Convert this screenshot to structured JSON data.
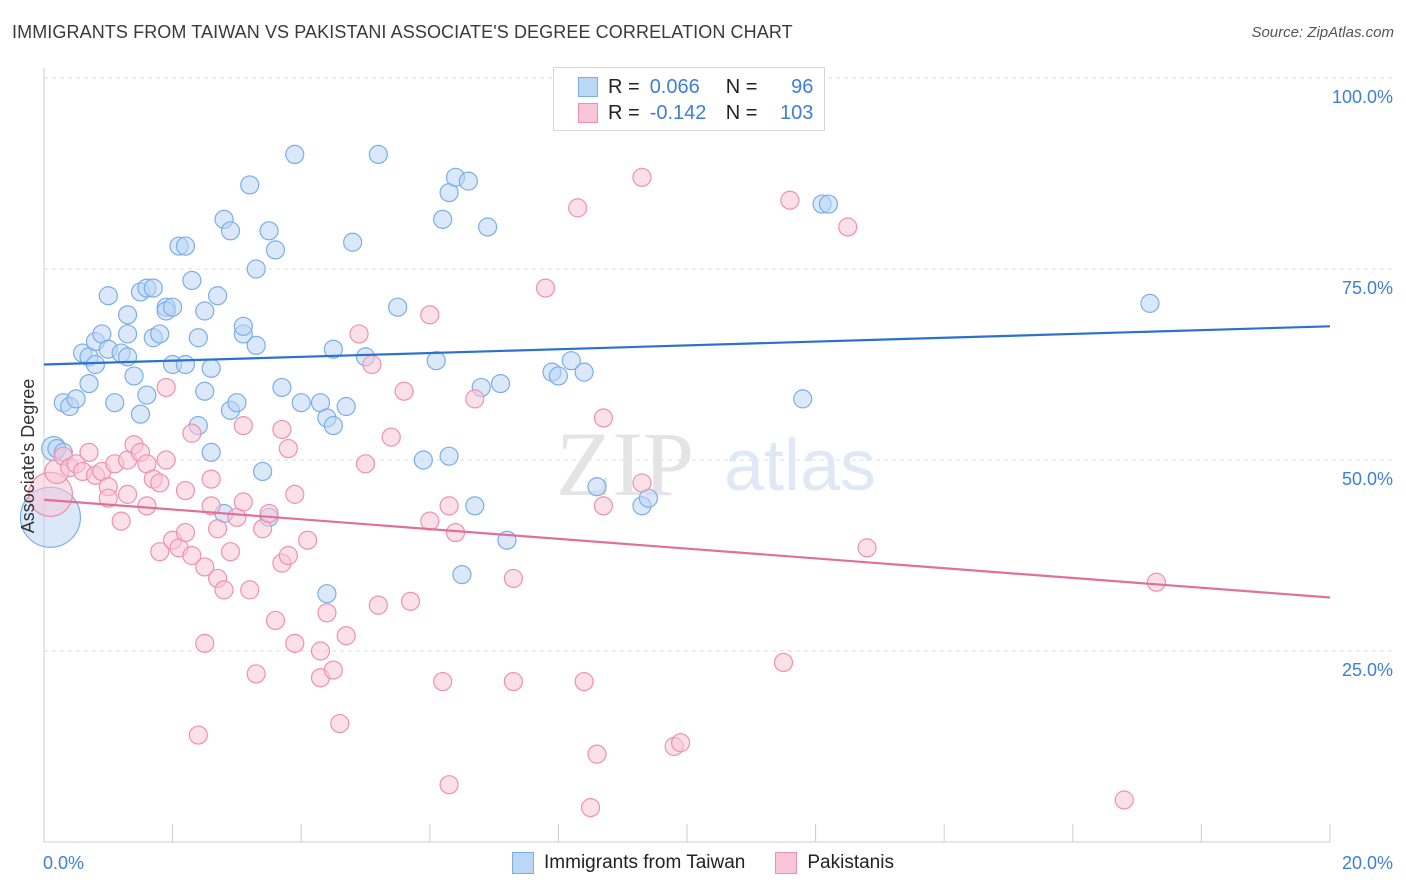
{
  "header": {
    "title": "IMMIGRANTS FROM TAIWAN VS PAKISTANI ASSOCIATE'S DEGREE CORRELATION CHART",
    "source": "Source: ZipAtlas.com"
  },
  "stats": {
    "r_label": "R =",
    "n_label": "N =",
    "taiwan": {
      "r": "0.066",
      "n": "96"
    },
    "pakistani": {
      "r": "-0.142",
      "n": "103"
    }
  },
  "watermark": {
    "zip": "ZIP",
    "atlas": "atlas"
  },
  "colors": {
    "taiwan": "#7aaee8",
    "taiwan_fill": "#bcd6f5",
    "taiwan_line": "#2a72cc",
    "pakistani": "#f090b0",
    "pakistani_fill": "#f8c6d6",
    "pakistani_line": "#e0709a",
    "tick_label": "#3d7fd6",
    "grid": "#dddddd"
  },
  "chart_data": {
    "type": "scatter",
    "xlabel": "",
    "ylabel": "Associate's Degree",
    "xlim": [
      0,
      20
    ],
    "ylim": [
      0,
      100
    ],
    "x_tick_labels": [
      "0.0%",
      "20.0%"
    ],
    "y_ticks": [
      25,
      50,
      75,
      100
    ],
    "y_tick_labels": [
      "25.0%",
      "50.0%",
      "75.0%",
      "100.0%"
    ],
    "grid": true,
    "legend": [
      {
        "name": "Immigrants from Taiwan"
      },
      {
        "name": "Pakistanis"
      }
    ],
    "series": [
      {
        "name": "Immigrants from Taiwan",
        "trend": [
          [
            0,
            62.5
          ],
          [
            20,
            67.5
          ]
        ],
        "points": [
          [
            0.1,
            42.5,
            30
          ],
          [
            0.15,
            51.5,
            12
          ],
          [
            0.2,
            51.5,
            9
          ],
          [
            0.3,
            51,
            9
          ],
          [
            0.3,
            57.5,
            9
          ],
          [
            0.4,
            57,
            9
          ],
          [
            0.5,
            58,
            9
          ],
          [
            0.6,
            64,
            9
          ],
          [
            0.7,
            63.5,
            9
          ],
          [
            0.7,
            60,
            9
          ],
          [
            0.8,
            62.5,
            9
          ],
          [
            0.8,
            65.5,
            9
          ],
          [
            0.9,
            66.5,
            9
          ],
          [
            1.0,
            64.5,
            9
          ],
          [
            1.0,
            71.5,
            9
          ],
          [
            1.1,
            57.5,
            9
          ],
          [
            1.2,
            64,
            9
          ],
          [
            1.3,
            66.5,
            9
          ],
          [
            1.3,
            63.5,
            9
          ],
          [
            1.3,
            69,
            9
          ],
          [
            1.4,
            61,
            9
          ],
          [
            1.5,
            56,
            9
          ],
          [
            1.5,
            72,
            9
          ],
          [
            1.6,
            58.5,
            9
          ],
          [
            1.6,
            72.5,
            9
          ],
          [
            1.7,
            72.5,
            9
          ],
          [
            1.7,
            66,
            9
          ],
          [
            1.8,
            66.5,
            9
          ],
          [
            1.9,
            70,
            9
          ],
          [
            1.9,
            69.5,
            9
          ],
          [
            2.0,
            62.5,
            9
          ],
          [
            2.0,
            70,
            9
          ],
          [
            2.1,
            78,
            9
          ],
          [
            2.2,
            62.5,
            9
          ],
          [
            2.2,
            78,
            9
          ],
          [
            2.3,
            73.5,
            9
          ],
          [
            2.4,
            54.5,
            9
          ],
          [
            2.4,
            66,
            9
          ],
          [
            2.5,
            59,
            9
          ],
          [
            2.5,
            69.5,
            9
          ],
          [
            2.6,
            62,
            9
          ],
          [
            2.6,
            51,
            9
          ],
          [
            2.7,
            71.5,
            9
          ],
          [
            2.8,
            81.5,
            9
          ],
          [
            2.8,
            43,
            9
          ],
          [
            2.9,
            80,
            9
          ],
          [
            2.9,
            56.5,
            9
          ],
          [
            3.0,
            57.5,
            9
          ],
          [
            3.1,
            66.5,
            9
          ],
          [
            3.1,
            67.5,
            9
          ],
          [
            3.2,
            86,
            9
          ],
          [
            3.3,
            75,
            9
          ],
          [
            3.3,
            65,
            9
          ],
          [
            3.4,
            48.5,
            9
          ],
          [
            3.5,
            80,
            9
          ],
          [
            3.5,
            42.5,
            9
          ],
          [
            3.6,
            77.5,
            9
          ],
          [
            3.7,
            59.5,
            9
          ],
          [
            3.9,
            90,
            9
          ],
          [
            4.0,
            57.5,
            9
          ],
          [
            4.3,
            57.5,
            9
          ],
          [
            4.4,
            55.5,
            9
          ],
          [
            4.4,
            32.5,
            9
          ],
          [
            4.5,
            54.5,
            9
          ],
          [
            4.5,
            64.5,
            9
          ],
          [
            4.7,
            57,
            9
          ],
          [
            4.8,
            78.5,
            9
          ],
          [
            5.0,
            63.5,
            9
          ],
          [
            5.2,
            90,
            9
          ],
          [
            5.5,
            70,
            9
          ],
          [
            5.9,
            50,
            9
          ],
          [
            6.1,
            63,
            9
          ],
          [
            6.2,
            81.5,
            9
          ],
          [
            6.3,
            50.5,
            9
          ],
          [
            6.3,
            85,
            9
          ],
          [
            6.4,
            87,
            9
          ],
          [
            6.5,
            35,
            9
          ],
          [
            6.6,
            86.5,
            9
          ],
          [
            6.7,
            44,
            9
          ],
          [
            6.8,
            59.5,
            9
          ],
          [
            6.9,
            80.5,
            9
          ],
          [
            7.1,
            60,
            9
          ],
          [
            7.2,
            39.5,
            9
          ],
          [
            7.9,
            61.5,
            9
          ],
          [
            8.0,
            61,
            9
          ],
          [
            8.2,
            63,
            9
          ],
          [
            8.4,
            61.5,
            9
          ],
          [
            8.6,
            46.5,
            9
          ],
          [
            9.3,
            44,
            9
          ],
          [
            9.4,
            45,
            9
          ],
          [
            11.8,
            58,
            9
          ],
          [
            12.1,
            83.5,
            9
          ],
          [
            12.2,
            83.5,
            9
          ],
          [
            17.2,
            70.5,
            9
          ]
        ]
      },
      {
        "name": "Pakistanis",
        "trend": [
          [
            0,
            44.8
          ],
          [
            20,
            32
          ]
        ],
        "points": [
          [
            0.1,
            45.5,
            22
          ],
          [
            0.2,
            48.5,
            12
          ],
          [
            0.3,
            50.5,
            9
          ],
          [
            0.4,
            49,
            9
          ],
          [
            0.5,
            49.5,
            9
          ],
          [
            0.6,
            48.5,
            9
          ],
          [
            0.7,
            51,
            9
          ],
          [
            0.8,
            48,
            9
          ],
          [
            0.9,
            48.5,
            9
          ],
          [
            1.0,
            46.5,
            9
          ],
          [
            1.0,
            45,
            9
          ],
          [
            1.1,
            49.5,
            9
          ],
          [
            1.2,
            42,
            9
          ],
          [
            1.3,
            50,
            9
          ],
          [
            1.3,
            45.5,
            9
          ],
          [
            1.4,
            52,
            9
          ],
          [
            1.5,
            51,
            9
          ],
          [
            1.6,
            44,
            9
          ],
          [
            1.6,
            49.5,
            9
          ],
          [
            1.7,
            47.5,
            9
          ],
          [
            1.8,
            38,
            9
          ],
          [
            1.8,
            47,
            9
          ],
          [
            1.9,
            50,
            9
          ],
          [
            1.9,
            59.5,
            9
          ],
          [
            2.0,
            39.5,
            9
          ],
          [
            2.1,
            38.5,
            9
          ],
          [
            2.2,
            46,
            9
          ],
          [
            2.2,
            40.5,
            9
          ],
          [
            2.3,
            53.5,
            9
          ],
          [
            2.3,
            37.5,
            9
          ],
          [
            2.4,
            14,
            9
          ],
          [
            2.5,
            36,
            9
          ],
          [
            2.5,
            26,
            9
          ],
          [
            2.6,
            47.5,
            9
          ],
          [
            2.6,
            44,
            9
          ],
          [
            2.7,
            34.5,
            9
          ],
          [
            2.7,
            41,
            9
          ],
          [
            2.8,
            33,
            9
          ],
          [
            2.9,
            38,
            9
          ],
          [
            3.0,
            42.5,
            9
          ],
          [
            3.1,
            44.5,
            9
          ],
          [
            3.1,
            54.5,
            9
          ],
          [
            3.2,
            33,
            9
          ],
          [
            3.3,
            22,
            9
          ],
          [
            3.4,
            41,
            9
          ],
          [
            3.5,
            43,
            9
          ],
          [
            3.6,
            29,
            9
          ],
          [
            3.7,
            54,
            9
          ],
          [
            3.7,
            36.5,
            9
          ],
          [
            3.8,
            51.5,
            9
          ],
          [
            3.8,
            37.5,
            9
          ],
          [
            3.9,
            45.5,
            9
          ],
          [
            3.9,
            26,
            9
          ],
          [
            4.1,
            39.5,
            9
          ],
          [
            4.3,
            21.5,
            9
          ],
          [
            4.3,
            25,
            9
          ],
          [
            4.4,
            30,
            9
          ],
          [
            4.5,
            22.5,
            9
          ],
          [
            4.6,
            15.5,
            9
          ],
          [
            4.7,
            27,
            9
          ],
          [
            4.9,
            66.5,
            9
          ],
          [
            5.0,
            49.5,
            9
          ],
          [
            5.1,
            62.5,
            9
          ],
          [
            5.2,
            31,
            9
          ],
          [
            5.4,
            53,
            9
          ],
          [
            5.6,
            59,
            9
          ],
          [
            5.7,
            31.5,
            9
          ],
          [
            6.0,
            42,
            9
          ],
          [
            6.0,
            69,
            9
          ],
          [
            6.2,
            21,
            9
          ],
          [
            6.3,
            44,
            9
          ],
          [
            6.3,
            7.5,
            9
          ],
          [
            6.4,
            40.5,
            9
          ],
          [
            6.7,
            58,
            9
          ],
          [
            7.3,
            34.5,
            9
          ],
          [
            7.3,
            21,
            9
          ],
          [
            7.8,
            72.5,
            9
          ],
          [
            8.3,
            83,
            9
          ],
          [
            8.4,
            21,
            9
          ],
          [
            8.5,
            4.5,
            9
          ],
          [
            8.6,
            11.5,
            9
          ],
          [
            8.7,
            44,
            9
          ],
          [
            8.7,
            55.5,
            9
          ],
          [
            9.3,
            87,
            9
          ],
          [
            9.3,
            47,
            9
          ],
          [
            9.8,
            12.5,
            9
          ],
          [
            9.9,
            13,
            9
          ],
          [
            11.5,
            23.5,
            9
          ],
          [
            11.6,
            84,
            9
          ],
          [
            12.5,
            80.5,
            9
          ],
          [
            12.8,
            38.5,
            9
          ],
          [
            16.8,
            5.5,
            9
          ],
          [
            17.3,
            34,
            9
          ]
        ]
      }
    ]
  }
}
